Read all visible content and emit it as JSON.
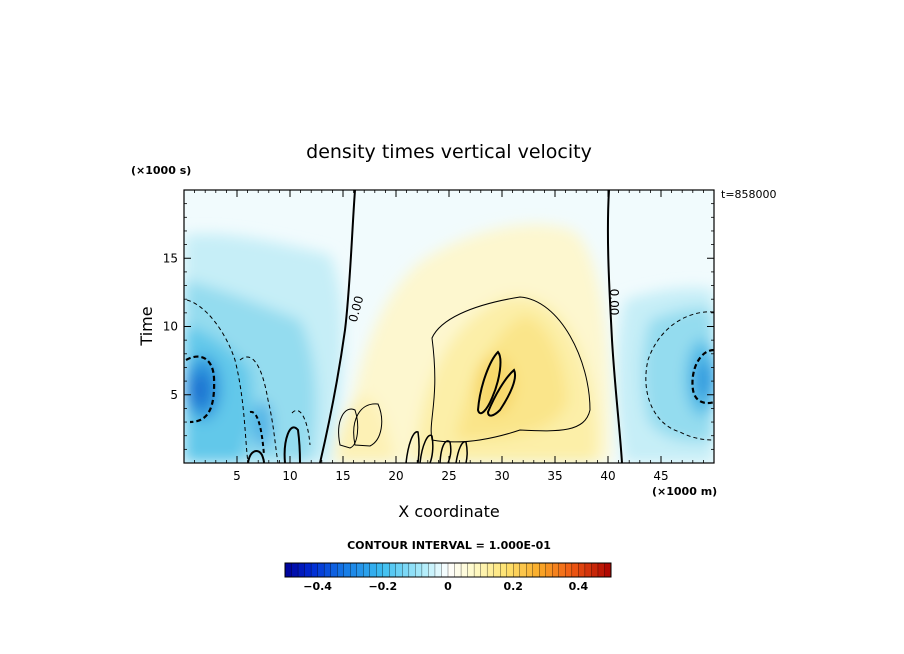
{
  "chart_data": {
    "type": "heatmap",
    "title": "density times vertical velocity",
    "xlabel": "X coordinate",
    "ylabel": "Time",
    "x_unit": "(×1000 m)",
    "y_unit": "(×1000 s)",
    "time_label": "t=858000",
    "contour_interval_label": "CONTOUR INTERVAL = 1.000E-01",
    "contour_label": "0.00",
    "xlim": [
      0,
      50
    ],
    "ylim": [
      0,
      20
    ],
    "x_ticks": [
      "5",
      "10",
      "15",
      "20",
      "25",
      "30",
      "35",
      "40",
      "45"
    ],
    "x_tick_values": [
      5,
      10,
      15,
      20,
      25,
      30,
      35,
      40,
      45
    ],
    "y_ticks": [
      "5",
      "10",
      "15"
    ],
    "y_tick_values": [
      5,
      10,
      15
    ],
    "colorbar": {
      "range": [
        -0.5,
        0.5
      ],
      "tick_values": [
        -0.4,
        -0.2,
        0,
        0.2,
        0.4
      ],
      "tick_labels": [
        "−0.4",
        "−0.2",
        "0",
        "0.2",
        "0.4"
      ]
    },
    "regions": [
      {
        "x": 1.5,
        "y": 5,
        "value": -0.42
      },
      {
        "x": 5,
        "y": 8,
        "value": -0.2
      },
      {
        "x": 8,
        "y": 3,
        "value": -0.3
      },
      {
        "x": 5,
        "y": 15,
        "value": -0.1
      },
      {
        "x": 27,
        "y": 10,
        "value": 0.1
      },
      {
        "x": 30,
        "y": 6.5,
        "value": 0.18
      },
      {
        "x": 16,
        "y": 3,
        "value": 0.15
      },
      {
        "x": 48.5,
        "y": 6,
        "value": -0.35
      },
      {
        "x": 46,
        "y": 12,
        "value": -0.08
      }
    ],
    "grid": false,
    "legend": "colorbar-bottom"
  }
}
